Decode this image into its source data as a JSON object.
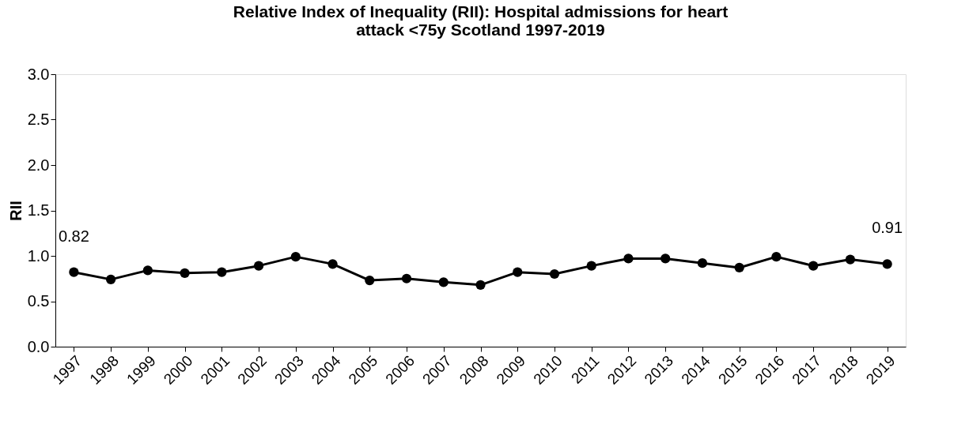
{
  "chart_data": {
    "type": "line",
    "title": [
      "Relative Index of Inequality (RII): Hospital admissions for heart",
      "attack <75y  Scotland 1997-2019"
    ],
    "ylabel": "RII",
    "categories": [
      "1997",
      "1998",
      "1999",
      "2000",
      "2001",
      "2002",
      "2003",
      "2004",
      "2005",
      "2006",
      "2007",
      "2008",
      "2009",
      "2010",
      "2011",
      "2012",
      "2013",
      "2014",
      "2015",
      "2016",
      "2017",
      "2018",
      "2019"
    ],
    "series": [
      {
        "color": "#000000",
        "values": [
          0.82,
          0.74,
          0.84,
          0.81,
          0.82,
          0.89,
          0.99,
          0.91,
          0.73,
          0.75,
          0.71,
          0.68,
          0.82,
          0.8,
          0.89,
          0.97,
          0.97,
          0.92,
          0.87,
          0.99,
          0.89,
          0.96,
          0.91
        ],
        "value_labels": [
          "0.82",
          null,
          null,
          null,
          null,
          null,
          null,
          null,
          null,
          null,
          null,
          null,
          null,
          null,
          null,
          null,
          null,
          null,
          null,
          null,
          null,
          null,
          "0.91"
        ]
      }
    ],
    "ylim": [
      0,
      3.0
    ],
    "yticks": [
      "0.0",
      "0.5",
      "1.0",
      "1.5",
      "2.0",
      "2.5",
      "3.0"
    ],
    "grid": false,
    "marker": "circle",
    "line_style": "solid"
  }
}
